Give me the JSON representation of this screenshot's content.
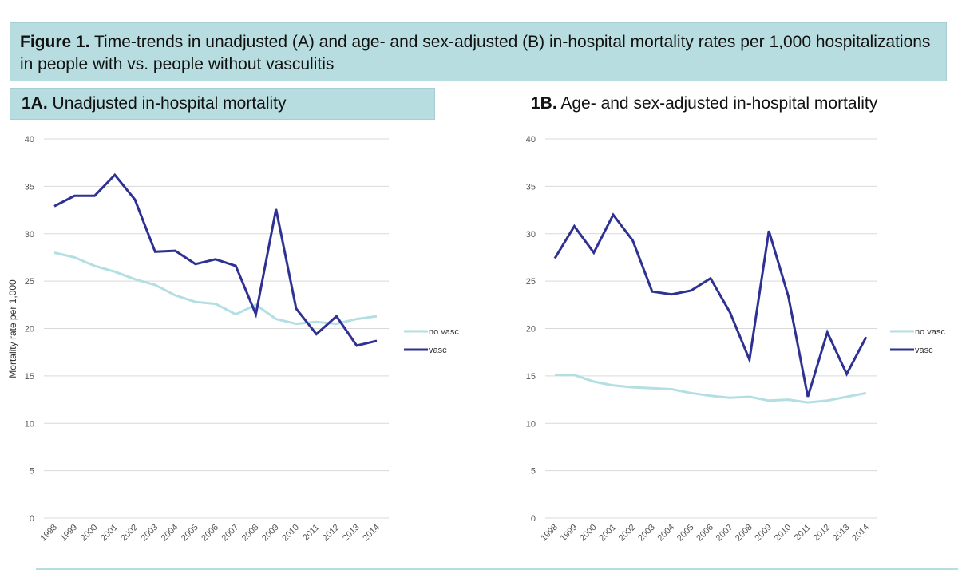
{
  "figure_title": {
    "prefix": "Figure 1.",
    "text": "Time-trends in unadjusted (A) and age- and sex-adjusted (B) in-hospital mortality rates per 1,000 hospitalizations in people with vs. people without vasculitis"
  },
  "colors": {
    "header_bg": "#b8dde0",
    "no_vasc": "#b3dfe3",
    "vasc": "#2e3192",
    "grid": "#d9d9d9",
    "tick_text": "#555555"
  },
  "chart_data": [
    {
      "type": "line",
      "panel_prefix": "1A.",
      "title": "Unadjusted in-hospital mortality",
      "xlabel": "",
      "ylabel": "Mortality rate per 1,000",
      "ylim": [
        0,
        40
      ],
      "yticks": [
        "0",
        "5",
        "10",
        "15",
        "20",
        "25",
        "30",
        "35",
        "40"
      ],
      "grid": true,
      "legend_position": "right",
      "categories": [
        "1998",
        "1999",
        "2000",
        "2001",
        "2002",
        "2003",
        "2004",
        "2005",
        "2006",
        "2007",
        "2008",
        "2009",
        "2010",
        "2011",
        "2012",
        "2013",
        "2014"
      ],
      "series": [
        {
          "name": "no vasc",
          "values": [
            28.0,
            27.5,
            26.6,
            26.0,
            25.2,
            24.6,
            23.5,
            22.8,
            22.6,
            21.5,
            22.5,
            21.0,
            20.5,
            20.7,
            20.5,
            21.0,
            21.3
          ]
        },
        {
          "name": "vasc",
          "values": [
            32.9,
            34.0,
            34.0,
            36.2,
            33.6,
            28.1,
            28.2,
            26.8,
            27.3,
            26.6,
            21.5,
            32.6,
            22.1,
            19.4,
            21.3,
            18.2,
            18.7
          ]
        }
      ]
    },
    {
      "type": "line",
      "panel_prefix": "1B.",
      "title": "Age- and sex-adjusted in-hospital mortality",
      "xlabel": "",
      "ylabel": "",
      "ylim": [
        0,
        40
      ],
      "yticks": [
        "0",
        "5",
        "10",
        "15",
        "20",
        "25",
        "30",
        "35",
        "40"
      ],
      "grid": true,
      "legend_position": "right",
      "categories": [
        "1998",
        "1999",
        "2000",
        "2001",
        "2002",
        "2003",
        "2004",
        "2005",
        "2006",
        "2007",
        "2008",
        "2009",
        "2010",
        "2011",
        "2012",
        "2013",
        "2014"
      ],
      "series": [
        {
          "name": "no vasc",
          "values": [
            15.1,
            15.1,
            14.4,
            14.0,
            13.8,
            13.7,
            13.6,
            13.2,
            12.9,
            12.7,
            12.8,
            12.4,
            12.5,
            12.2,
            12.4,
            12.8,
            13.2
          ]
        },
        {
          "name": "vasc",
          "values": [
            27.4,
            30.8,
            28.0,
            32.0,
            29.3,
            23.9,
            23.6,
            24.0,
            25.3,
            21.7,
            16.7,
            30.3,
            23.4,
            12.8,
            19.6,
            15.2,
            19.1
          ]
        }
      ]
    }
  ]
}
